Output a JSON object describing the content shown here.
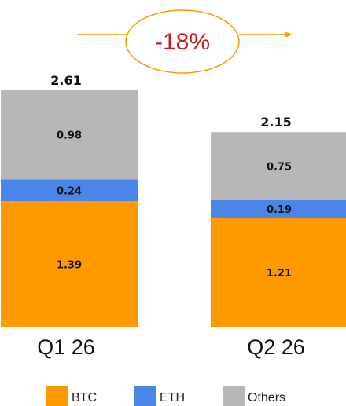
{
  "chart_data": {
    "type": "bar",
    "stacked": true,
    "categories": [
      "Q1 26",
      "Q2 26"
    ],
    "series": [
      {
        "name": "BTC",
        "values": [
          1.39,
          1.21
        ],
        "color": "#ff9900"
      },
      {
        "name": "ETH",
        "values": [
          0.24,
          0.19
        ],
        "color": "#4a86e8"
      },
      {
        "name": "Others",
        "values": [
          0.98,
          0.75
        ],
        "color": "#b7b7b7"
      }
    ],
    "totals": [
      "2.61",
      "2.15"
    ],
    "segment_labels": [
      [
        "1.39",
        "0.24",
        "0.98"
      ],
      [
        "1.21",
        "0.19",
        "0.75"
      ]
    ],
    "change_annotation": "-18%",
    "annotation_colors": {
      "arrow": "#ff9900",
      "text": "#cc1a1a"
    },
    "legend_position": "bottom",
    "grid": false,
    "ylim": [
      0,
      2.61
    ]
  }
}
